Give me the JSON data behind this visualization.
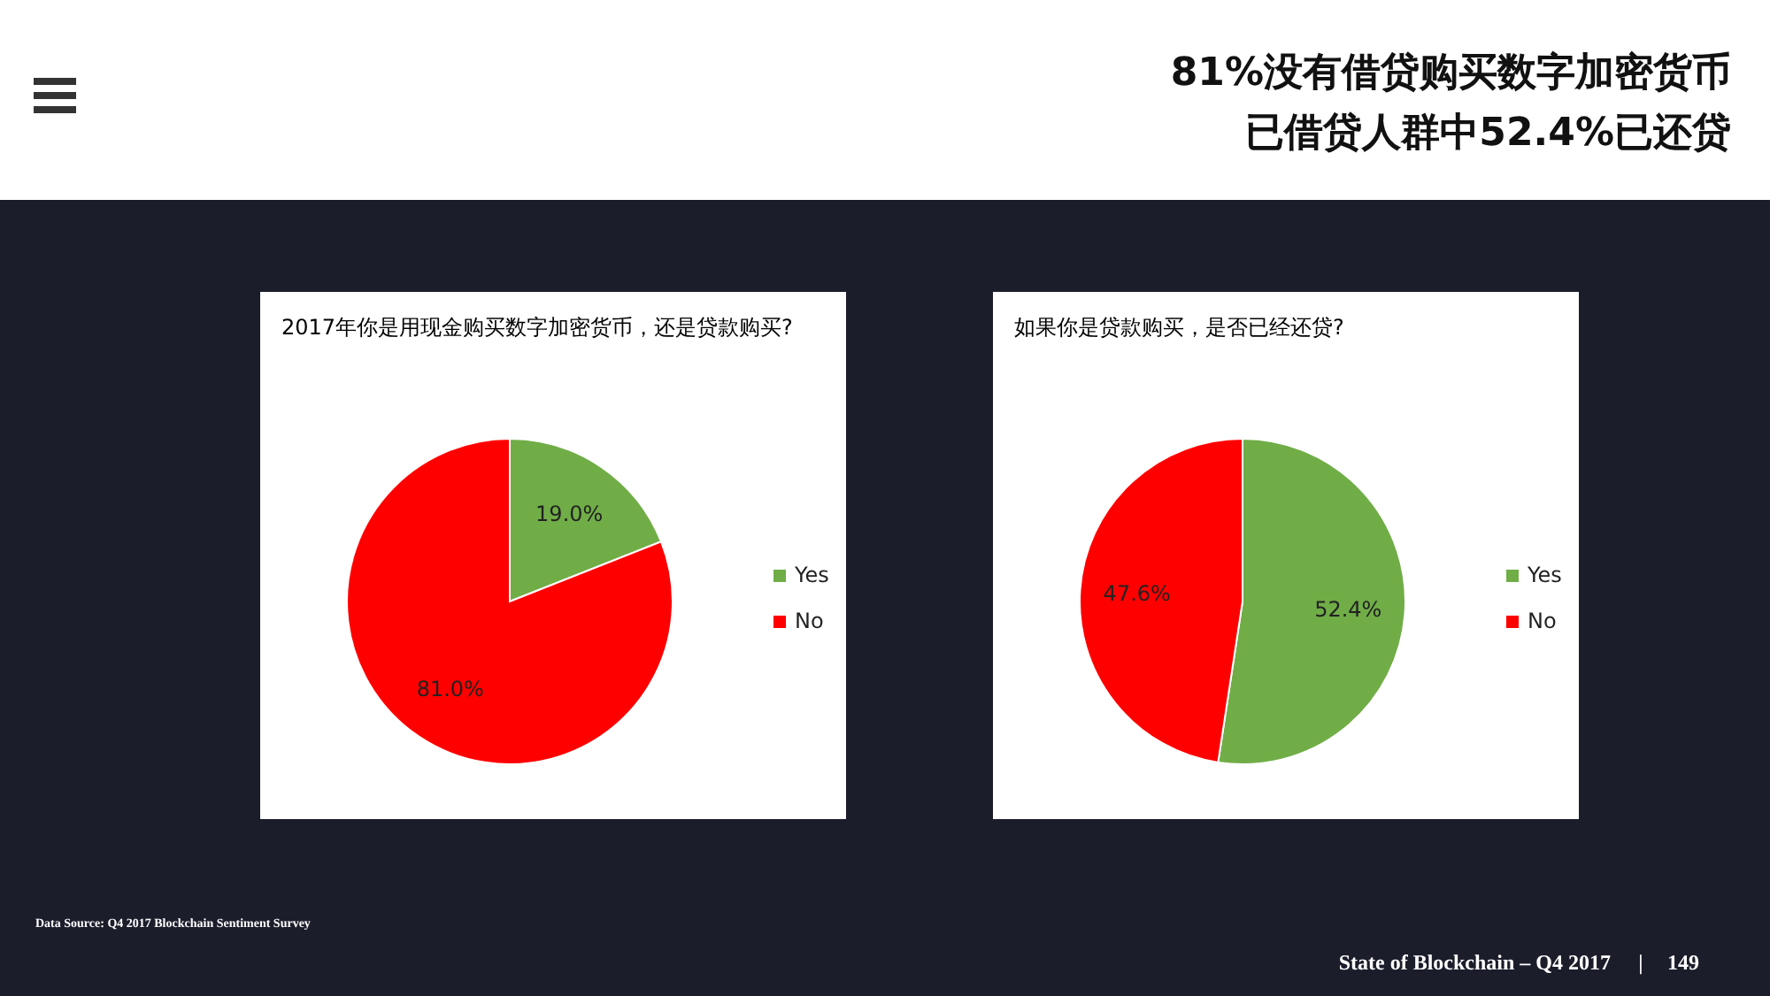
{
  "chart_data": [
    {
      "type": "other",
      "title": "81%没有借贷购买数字加密货币",
      "subtitle": "已借贷人群中52.4%已还贷",
      "annotations": [
        "Data Source: Q4 2017 Blockchain Sentiment Survey",
        "State of Blockchain – Q4 2017",
        "|",
        "149"
      ]
    },
    {
      "type": "pie",
      "title": "2017年你是用现金购买数字加密货币，还是贷款购买?",
      "categories": [
        "Yes",
        "No"
      ],
      "values": [
        19.0,
        81.0
      ],
      "colors": [
        "#70ad47",
        "#ff0000"
      ],
      "value_labels": [
        "19.0%",
        "81.0%"
      ],
      "legend": "right"
    },
    {
      "type": "pie",
      "title": "如果你是贷款购买，是否已经还贷?",
      "categories": [
        "Yes",
        "No"
      ],
      "values": [
        52.4,
        47.6
      ],
      "colors": [
        "#70ad47",
        "#ff0000"
      ],
      "value_labels": [
        "52.4%",
        "47.6%"
      ],
      "legend": "right"
    }
  ]
}
